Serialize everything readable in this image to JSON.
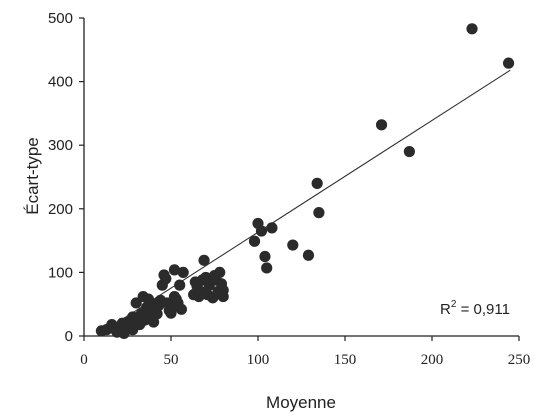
{
  "chart_data": {
    "type": "scatter",
    "xlabel": "Moyenne",
    "ylabel": "Écart-type",
    "xlim": [
      0,
      250
    ],
    "ylim": [
      0,
      500
    ],
    "x_ticks": [
      "0",
      "50",
      "100",
      "150",
      "200",
      "250"
    ],
    "y_ticks": [
      "0",
      "100",
      "200",
      "300",
      "400",
      "500"
    ],
    "annotation": {
      "r2_prefix": "R",
      "r2_exp": "2",
      "r2_value": " = 0,911"
    },
    "trendline": {
      "x": [
        10,
        245
      ],
      "y": [
        5,
        418
      ]
    },
    "grid": false,
    "legend": "none",
    "point_color": "#2b2b2b",
    "points": [
      [
        10,
        8
      ],
      [
        13,
        10
      ],
      [
        16,
        18
      ],
      [
        17,
        12
      ],
      [
        19,
        6
      ],
      [
        21,
        15
      ],
      [
        22,
        20
      ],
      [
        23,
        4
      ],
      [
        24,
        12
      ],
      [
        25,
        22
      ],
      [
        26,
        16
      ],
      [
        27,
        26
      ],
      [
        28,
        10
      ],
      [
        28,
        30
      ],
      [
        30,
        20
      ],
      [
        30,
        52
      ],
      [
        31,
        28
      ],
      [
        32,
        18
      ],
      [
        33,
        35
      ],
      [
        34,
        62
      ],
      [
        35,
        25
      ],
      [
        36,
        45
      ],
      [
        37,
        58
      ],
      [
        38,
        30
      ],
      [
        39,
        40
      ],
      [
        40,
        22
      ],
      [
        41,
        50
      ],
      [
        42,
        35
      ],
      [
        43,
        48
      ],
      [
        44,
        56
      ],
      [
        45,
        80
      ],
      [
        46,
        96
      ],
      [
        47,
        90
      ],
      [
        48,
        52
      ],
      [
        49,
        40
      ],
      [
        50,
        36
      ],
      [
        51,
        46
      ],
      [
        52,
        62
      ],
      [
        52,
        104
      ],
      [
        53,
        58
      ],
      [
        54,
        52
      ],
      [
        55,
        80
      ],
      [
        56,
        42
      ],
      [
        57,
        100
      ],
      [
        63,
        65
      ],
      [
        64,
        85
      ],
      [
        65,
        78
      ],
      [
        66,
        62
      ],
      [
        67,
        70
      ],
      [
        68,
        88
      ],
      [
        69,
        119
      ],
      [
        70,
        92
      ],
      [
        71,
        65
      ],
      [
        72,
        80
      ],
      [
        74,
        60
      ],
      [
        75,
        95
      ],
      [
        76,
        88
      ],
      [
        77,
        70
      ],
      [
        78,
        100
      ],
      [
        79,
        82
      ],
      [
        80,
        62
      ],
      [
        80,
        72
      ],
      [
        98,
        149
      ],
      [
        100,
        177
      ],
      [
        102,
        165
      ],
      [
        104,
        125
      ],
      [
        105,
        107
      ],
      [
        108,
        170
      ],
      [
        120,
        143
      ],
      [
        129,
        127
      ],
      [
        134,
        240
      ],
      [
        135,
        194
      ],
      [
        171,
        332
      ],
      [
        187,
        290
      ],
      [
        223,
        483
      ],
      [
        244,
        429
      ]
    ]
  }
}
